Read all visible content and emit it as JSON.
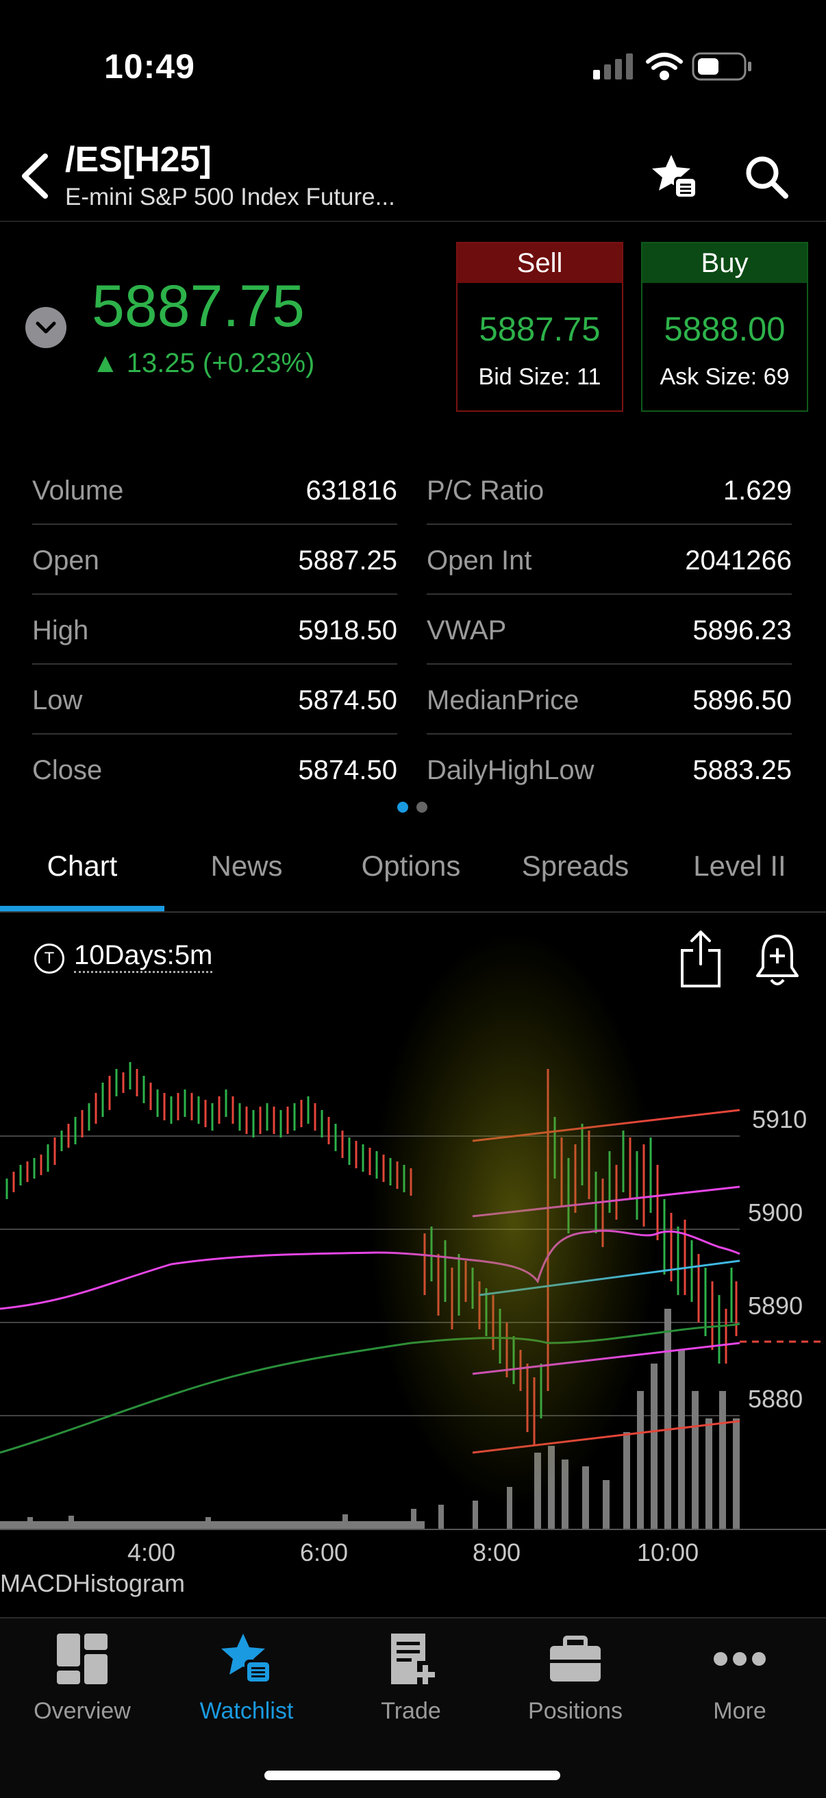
{
  "status": {
    "time": "10:49"
  },
  "header": {
    "symbol": "/ES[H25]",
    "subtitle": "E-mini S&P 500 Index Future...",
    "icons": [
      "back-chevron-icon",
      "watchlist-star-icon",
      "search-icon"
    ]
  },
  "quote": {
    "last": "5887.75",
    "change": "▲ 13.25 (+0.23%)",
    "sell": {
      "label": "Sell",
      "price": "5887.75",
      "size": "Bid Size: 11"
    },
    "buy": {
      "label": "Buy",
      "price": "5888.00",
      "size": "Ask Size: 69"
    },
    "colors": {
      "up": "#2db24a",
      "sell": "#6e0d0d",
      "buy": "#0b4a14"
    }
  },
  "stats": {
    "left": [
      {
        "label": "Volume",
        "value": "631816"
      },
      {
        "label": "Open",
        "value": "5887.25"
      },
      {
        "label": "High",
        "value": "5918.50"
      },
      {
        "label": "Low",
        "value": "5874.50"
      },
      {
        "label": "Close",
        "value": "5874.50"
      }
    ],
    "right": [
      {
        "label": "P/C Ratio",
        "value": "1.629"
      },
      {
        "label": "Open Int",
        "value": "2041266"
      },
      {
        "label": "VWAP",
        "value": "5896.23"
      },
      {
        "label": "MedianPrice",
        "value": "5896.50"
      },
      {
        "label": "DailyHighLow",
        "value": "5883.25"
      }
    ]
  },
  "tabs": [
    {
      "label": "Chart",
      "active": true
    },
    {
      "label": "News"
    },
    {
      "label": "Options"
    },
    {
      "label": "Spreads"
    },
    {
      "label": "Level II"
    }
  ],
  "chart": {
    "interval": "10Days:5m",
    "timer_glyph": "T",
    "y_labels": [
      "5910",
      "5900",
      "5890",
      "5880"
    ],
    "x_labels": [
      "4:00",
      "6:00",
      "8:00",
      "10:00"
    ],
    "indicator_label": "MACDHistogram"
  },
  "nav": [
    {
      "label": "Overview",
      "icon": "overview-grid-icon"
    },
    {
      "label": "Watchlist",
      "icon": "watchlist-star-icon",
      "active": true
    },
    {
      "label": "Trade",
      "icon": "trade-ticket-icon"
    },
    {
      "label": "Positions",
      "icon": "briefcase-icon"
    },
    {
      "label": "More",
      "icon": "more-dots-icon"
    }
  ]
}
